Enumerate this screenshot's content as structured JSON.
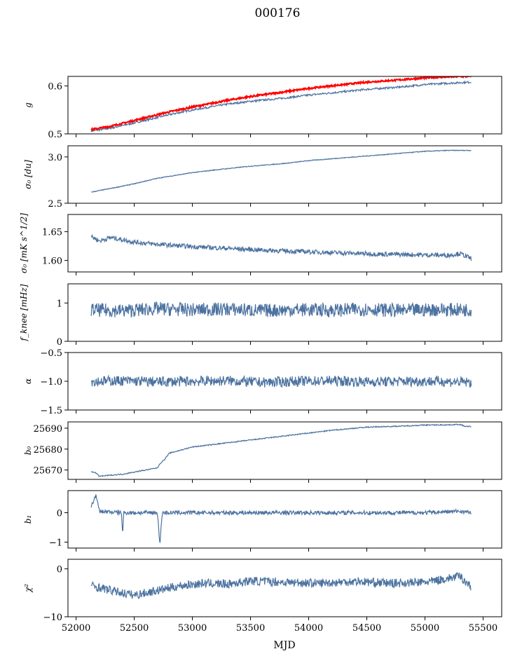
{
  "figure": {
    "title": "000176"
  },
  "colors": {
    "series": "#4c72a0",
    "overlay": "#ff0000",
    "axis": "#000000"
  },
  "chart_data": [
    {
      "type": "line",
      "ylabel": "g",
      "ylim": [
        0.5,
        0.62
      ],
      "yticks": [
        0.5,
        0.6
      ],
      "ytick_labels": [
        "0.5",
        "0.6"
      ],
      "xlim": [
        51930,
        55660
      ],
      "series": [
        {
          "color": "#4c72a0",
          "x": [
            52130,
            52300,
            52500,
            52800,
            53000,
            53300,
            53500,
            53800,
            54000,
            54300,
            54500,
            54800,
            55000,
            55300,
            55400
          ],
          "y": [
            0.506,
            0.512,
            0.523,
            0.54,
            0.55,
            0.562,
            0.568,
            0.575,
            0.581,
            0.588,
            0.593,
            0.598,
            0.603,
            0.607,
            0.608
          ]
        },
        {
          "color": "#ff0000",
          "x": [
            52130,
            52300,
            52500,
            52800,
            53000,
            53300,
            53500,
            53800,
            54000,
            54300,
            54500,
            54800,
            55000,
            55300,
            55400
          ],
          "y": [
            0.509,
            0.516,
            0.528,
            0.546,
            0.556,
            0.57,
            0.578,
            0.588,
            0.595,
            0.603,
            0.608,
            0.613,
            0.617,
            0.62,
            0.62
          ]
        }
      ]
    },
    {
      "type": "line",
      "ylabel": "σ₀ [du]",
      "ylim": [
        2.5,
        3.12
      ],
      "yticks": [
        2.5,
        3.0
      ],
      "ytick_labels": [
        "2.5",
        "3.0"
      ],
      "xlim": [
        51930,
        55660
      ],
      "series": [
        {
          "color": "#4c72a0",
          "x": [
            52130,
            52300,
            52500,
            52700,
            53000,
            53200,
            53500,
            53800,
            54000,
            54300,
            54500,
            54800,
            55000,
            55200,
            55400
          ],
          "y": [
            2.62,
            2.66,
            2.71,
            2.77,
            2.83,
            2.86,
            2.9,
            2.93,
            2.96,
            2.99,
            3.01,
            3.04,
            3.06,
            3.07,
            3.07
          ]
        }
      ]
    },
    {
      "type": "line",
      "ylabel": "σ₀ [mK s^1/2]",
      "ylim": [
        1.58,
        1.68
      ],
      "yticks": [
        1.6,
        1.65
      ],
      "ytick_labels": [
        "1.60",
        "1.65"
      ],
      "xlim": [
        51930,
        55660
      ],
      "series": [
        {
          "color": "#4c72a0",
          "x": [
            52130,
            52200,
            52300,
            52500,
            52700,
            53000,
            53300,
            53600,
            54000,
            54300,
            54600,
            54900,
            55200,
            55300,
            55400
          ],
          "y": [
            1.642,
            1.634,
            1.64,
            1.632,
            1.628,
            1.624,
            1.621,
            1.618,
            1.615,
            1.613,
            1.611,
            1.61,
            1.609,
            1.612,
            1.603
          ]
        }
      ]
    },
    {
      "type": "line",
      "ylabel": "f_knee [mHz]",
      "ylim": [
        0,
        1.5
      ],
      "yticks": [
        0,
        1
      ],
      "ytick_labels": [
        "0",
        "1"
      ],
      "xlim": [
        51930,
        55660
      ],
      "series": [
        {
          "color": "#4c72a0",
          "x": [
            52130,
            52400,
            52700,
            53000,
            53300,
            53600,
            53900,
            54200,
            54500,
            54800,
            55100,
            55400
          ],
          "y": [
            0.82,
            0.8,
            0.85,
            0.82,
            0.84,
            0.8,
            0.83,
            0.81,
            0.84,
            0.8,
            0.83,
            0.82
          ]
        }
      ]
    },
    {
      "type": "line",
      "ylabel": "α",
      "ylim": [
        -1.5,
        -0.5
      ],
      "yticks": [
        -1.5,
        -1.0,
        -0.5
      ],
      "ytick_labels": [
        "−1.5",
        "−1.0",
        "−0.5"
      ],
      "xlim": [
        51930,
        55660
      ],
      "series": [
        {
          "color": "#4c72a0",
          "x": [
            52130,
            52400,
            52700,
            53000,
            53300,
            53600,
            53900,
            54200,
            54500,
            54800,
            55100,
            55400
          ],
          "y": [
            -1.0,
            -0.99,
            -1.01,
            -1.0,
            -0.99,
            -1.02,
            -1.0,
            -0.99,
            -1.01,
            -1.0,
            -1.0,
            -1.02
          ]
        }
      ]
    },
    {
      "type": "line",
      "ylabel": "b₀",
      "ylim": [
        25665.5,
        25693
      ],
      "yticks": [
        25670,
        25680,
        25690
      ],
      "ytick_labels": [
        "25670",
        "25680",
        "25690"
      ],
      "xlim": [
        51930,
        55660
      ],
      "series": [
        {
          "color": "#4c72a0",
          "x": [
            52130,
            52160,
            52200,
            52400,
            52600,
            52700,
            52720,
            52760,
            52800,
            53000,
            53300,
            53600,
            53900,
            54200,
            54500,
            54800,
            55000,
            55200,
            55300,
            55350,
            55400
          ],
          "y": [
            25669,
            25669,
            25667,
            25668,
            25670,
            25671,
            25673,
            25675,
            25678,
            25681,
            25683,
            25685,
            25687,
            25689,
            25690.5,
            25691,
            25691.5,
            25691.6,
            25691.8,
            25690.8,
            25690.8
          ]
        }
      ]
    },
    {
      "type": "line",
      "ylabel": "b₁",
      "ylim": [
        -1.2,
        0.75
      ],
      "yticks": [
        -1,
        0
      ],
      "ytick_labels": [
        "−1",
        "0"
      ],
      "xlim": [
        51930,
        55660
      ],
      "series": [
        {
          "color": "#4c72a0",
          "x": [
            52130,
            52170,
            52200,
            52390,
            52400,
            52410,
            52700,
            52720,
            52740,
            53000,
            53500,
            54000,
            54500,
            55000,
            55300,
            55400
          ],
          "y": [
            0.2,
            0.6,
            0.05,
            0.0,
            -0.75,
            0.0,
            0.0,
            -1.1,
            0.0,
            0.0,
            0.0,
            0.0,
            0.0,
            0.0,
            0.05,
            0.0
          ]
        }
      ]
    },
    {
      "type": "line",
      "ylabel": "χ²",
      "ylim": [
        -10,
        2
      ],
      "yticks": [
        -10,
        0
      ],
      "ytick_labels": [
        "−10",
        "0"
      ],
      "xlabel": "MJD",
      "xticks": [
        52000,
        52500,
        53000,
        53500,
        54000,
        54500,
        55000,
        55500
      ],
      "xtick_labels": [
        "52000",
        "52500",
        "53000",
        "53500",
        "54000",
        "54500",
        "55000",
        "55500"
      ],
      "xlim": [
        51930,
        55660
      ],
      "series": [
        {
          "color": "#4c72a0",
          "x": [
            52130,
            52300,
            52500,
            52700,
            52900,
            53100,
            53300,
            53500,
            53800,
            54100,
            54400,
            54700,
            55000,
            55200,
            55300,
            55400
          ],
          "y": [
            -3.5,
            -4.5,
            -5.5,
            -4.5,
            -3.5,
            -3.0,
            -3.2,
            -2.5,
            -2.8,
            -3.0,
            -2.6,
            -3.0,
            -2.8,
            -2.0,
            -1.5,
            -3.8
          ]
        }
      ]
    }
  ]
}
